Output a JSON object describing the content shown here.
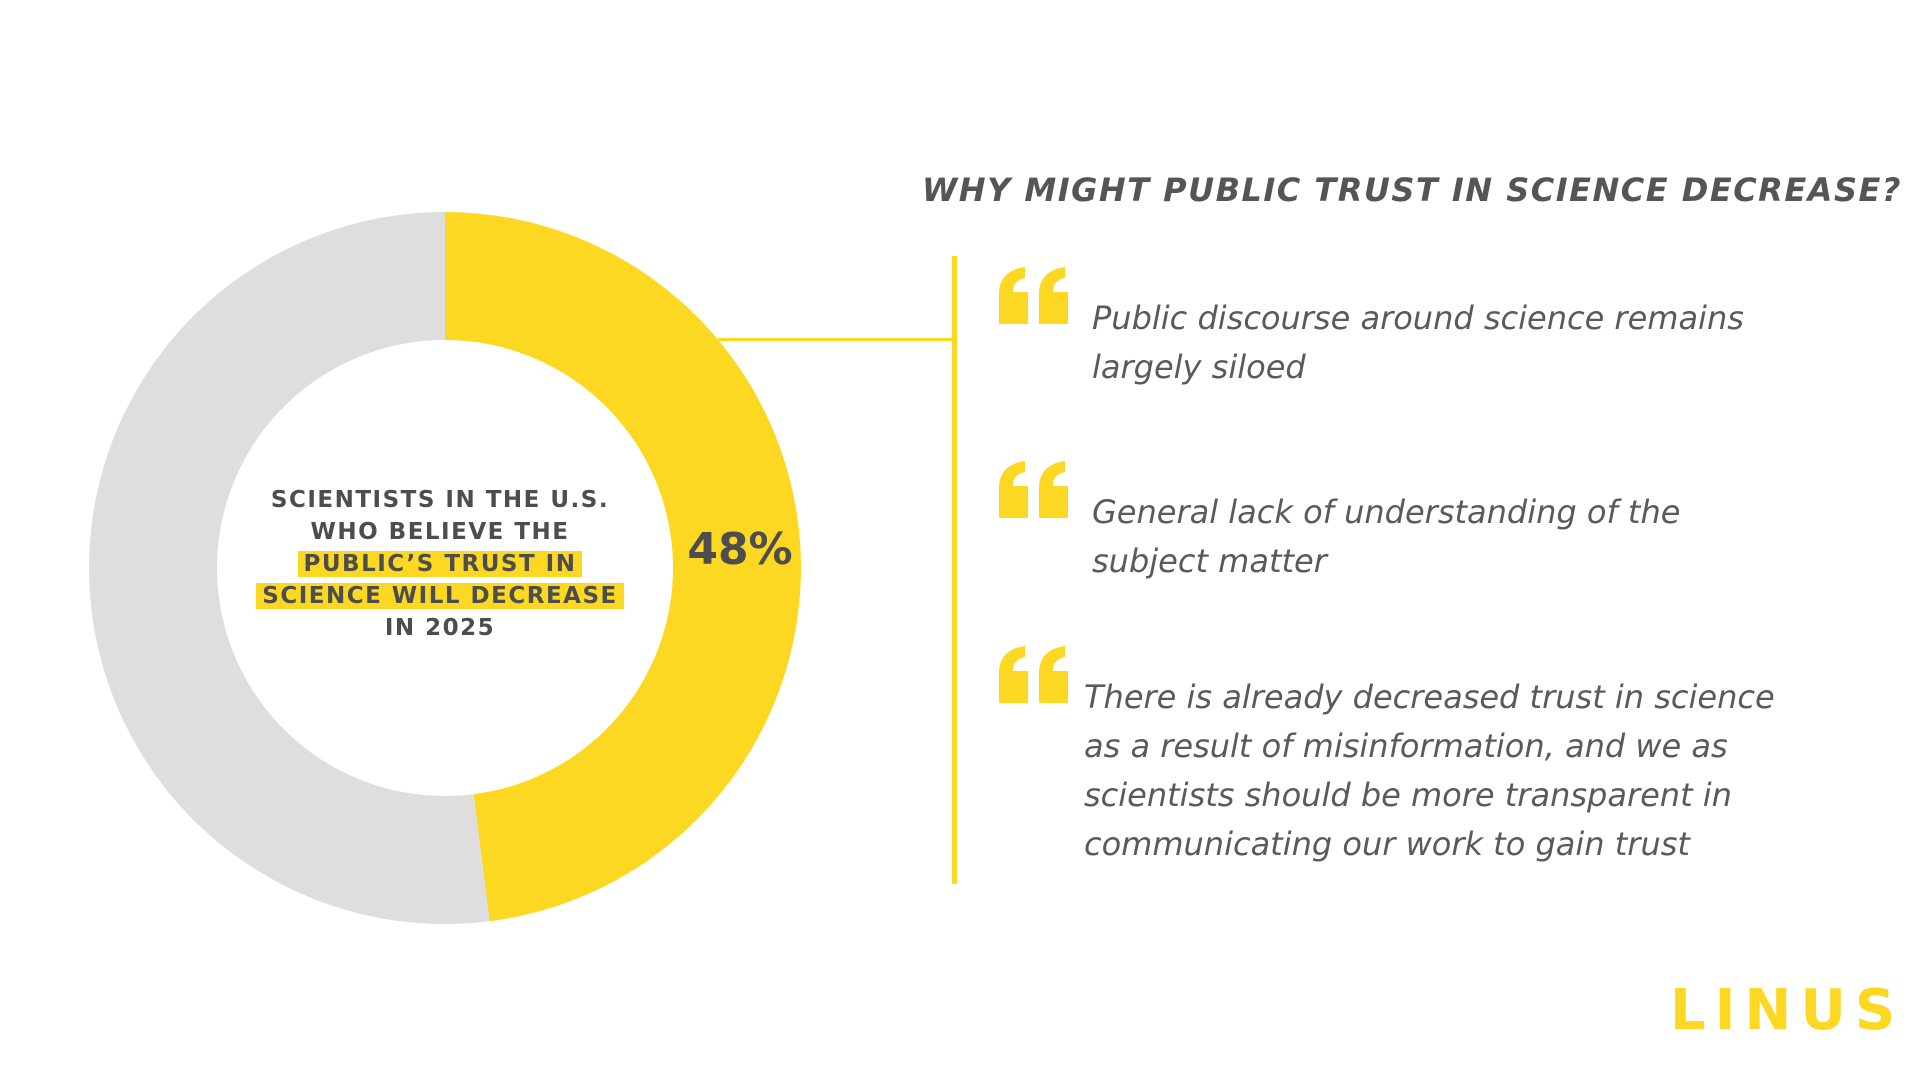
{
  "chart_data": {
    "type": "pie",
    "donut": true,
    "slices": [
      {
        "label": "",
        "value": 48,
        "color": "#fcd822"
      },
      {
        "label": "",
        "value": 52,
        "color": "#dedede"
      }
    ],
    "value_label": "48%",
    "center_text": {
      "lines": [
        {
          "text": "SCIENTISTS IN THE U.S.",
          "highlight": false
        },
        {
          "text": "WHO BELIEVE THE",
          "highlight": false
        },
        {
          "text": "PUBLIC’S TRUST IN",
          "highlight": true
        },
        {
          "text": "SCIENCE WILL DECREASE",
          "highlight": true
        },
        {
          "text": "IN 2025",
          "highlight": false
        }
      ]
    }
  },
  "question": {
    "title": "WHY MIGHT PUBLIC TRUST IN SCIENCE DECREASE?"
  },
  "quotes": [
    {
      "lines": [
        "Public discourse around science remains",
        "largely siloed"
      ]
    },
    {
      "lines": [
        "General lack of understanding of the",
        "subject matter"
      ]
    },
    {
      "lines": [
        "There is already decreased trust in science",
        "as a result of misinformation, and we as",
        "scientists should be more transparent in",
        "communicating our work to gain trust"
      ]
    }
  ],
  "logo": {
    "text": "LINUS"
  },
  "colors": {
    "accent": "#fcd822",
    "ring_rest": "#dedede",
    "text": "#4d4d4d"
  }
}
